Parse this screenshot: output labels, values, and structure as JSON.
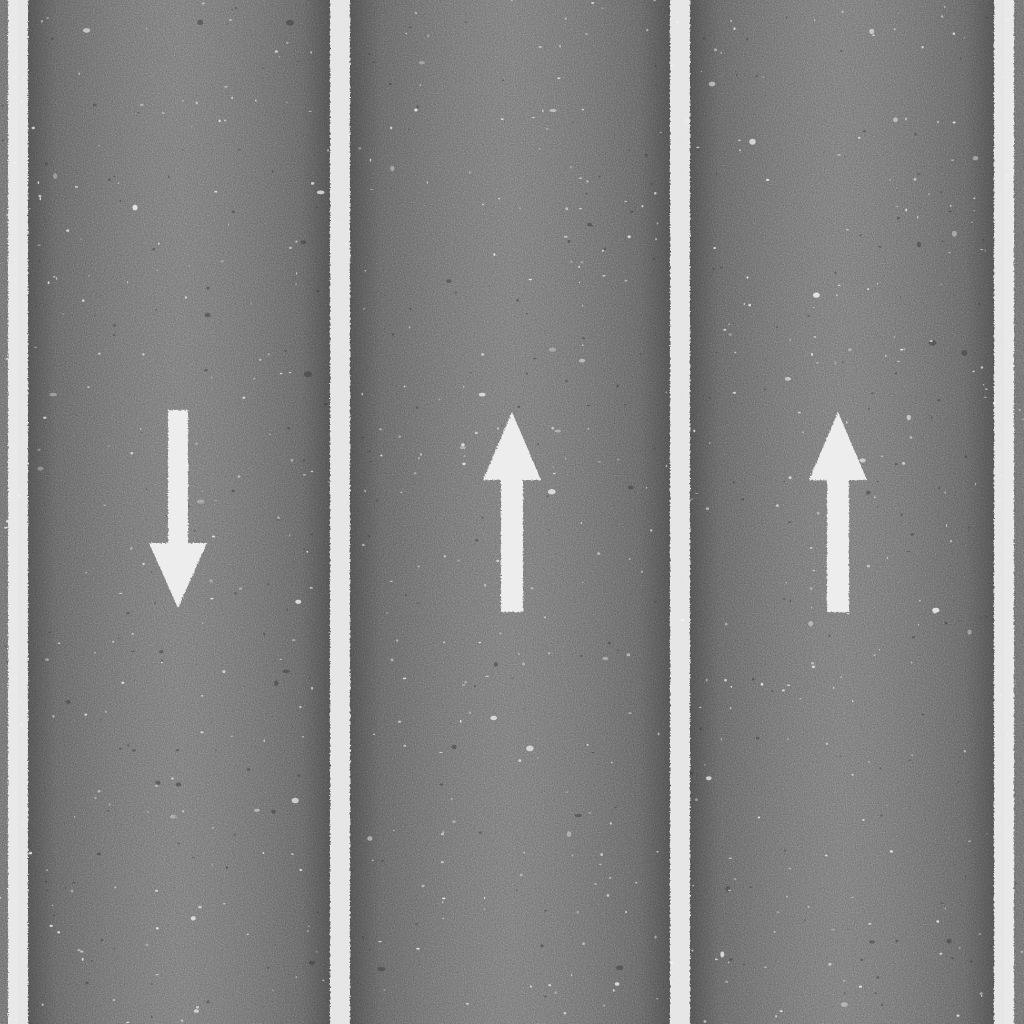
{
  "scene": {
    "description_label": "",
    "colors": {
      "asphalt_mid": "#666666",
      "asphalt_dark": "#3a3a3a",
      "asphalt_light": "#8a8a8a",
      "paint": "#f2f2f2",
      "speckle": "#e8e8e8"
    },
    "lane_count": 3,
    "lanes": [
      {
        "id": "lane-1",
        "arrow_direction": "down"
      },
      {
        "id": "lane-2",
        "arrow_direction": "up"
      },
      {
        "id": "lane-3",
        "arrow_direction": "up"
      }
    ],
    "lane_line_count": 4,
    "line_style": "solid"
  }
}
